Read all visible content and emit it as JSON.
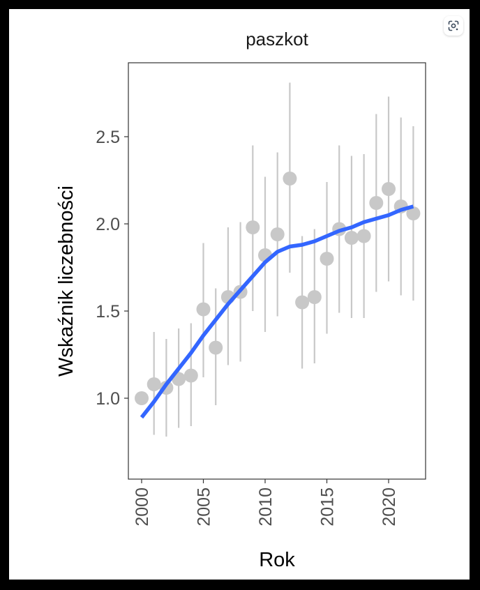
{
  "chart_data": {
    "type": "scatter",
    "title": "paszkot",
    "xlabel": "Rok",
    "ylabel": "Wskaźnik liczebności",
    "xlim": [
      1999,
      2023
    ],
    "ylim": [
      0.45,
      2.85
    ],
    "x_ticks": [
      2000,
      2005,
      2010,
      2015,
      2020
    ],
    "y_ticks": [
      1.0,
      1.5,
      2.0,
      2.5
    ],
    "x_tick_labels": [
      "2000",
      "2005",
      "2010",
      "2015",
      "2020"
    ],
    "y_tick_labels": [
      "1.0",
      "1.5",
      "2.0",
      "2.5"
    ],
    "grid": false,
    "series": [
      {
        "kind": "points_with_error_bars",
        "color": "#c8c8c8",
        "points": [
          {
            "x": 2000,
            "y": 1.0,
            "lo": null,
            "hi": null
          },
          {
            "x": 2001,
            "y": 1.08,
            "lo": 0.79,
            "hi": 1.38
          },
          {
            "x": 2002,
            "y": 1.06,
            "lo": 0.78,
            "hi": 1.34
          },
          {
            "x": 2003,
            "y": 1.11,
            "lo": 0.83,
            "hi": 1.4
          },
          {
            "x": 2004,
            "y": 1.13,
            "lo": 0.84,
            "hi": 1.43
          },
          {
            "x": 2005,
            "y": 1.51,
            "lo": 1.12,
            "hi": 1.89
          },
          {
            "x": 2006,
            "y": 1.29,
            "lo": 0.96,
            "hi": 1.63
          },
          {
            "x": 2007,
            "y": 1.58,
            "lo": 1.19,
            "hi": 1.98
          },
          {
            "x": 2008,
            "y": 1.61,
            "lo": 1.21,
            "hi": 2.01
          },
          {
            "x": 2009,
            "y": 1.98,
            "lo": 1.5,
            "hi": 2.45
          },
          {
            "x": 2010,
            "y": 1.82,
            "lo": 1.38,
            "hi": 2.27
          },
          {
            "x": 2011,
            "y": 1.94,
            "lo": 1.47,
            "hi": 2.41
          },
          {
            "x": 2012,
            "y": 2.26,
            "lo": 1.72,
            "hi": 2.81
          },
          {
            "x": 2013,
            "y": 1.55,
            "lo": 1.17,
            "hi": 1.93
          },
          {
            "x": 2014,
            "y": 1.58,
            "lo": 1.2,
            "hi": 1.97
          },
          {
            "x": 2015,
            "y": 1.8,
            "lo": 1.37,
            "hi": 2.24
          },
          {
            "x": 2016,
            "y": 1.97,
            "lo": 1.49,
            "hi": 2.45
          },
          {
            "x": 2017,
            "y": 1.92,
            "lo": 1.46,
            "hi": 2.39
          },
          {
            "x": 2018,
            "y": 1.93,
            "lo": 1.46,
            "hi": 2.4
          },
          {
            "x": 2019,
            "y": 2.12,
            "lo": 1.61,
            "hi": 2.63
          },
          {
            "x": 2020,
            "y": 2.2,
            "lo": 1.67,
            "hi": 2.73
          },
          {
            "x": 2021,
            "y": 2.1,
            "lo": 1.59,
            "hi": 2.61
          },
          {
            "x": 2022,
            "y": 2.06,
            "lo": 1.56,
            "hi": 2.56
          }
        ]
      },
      {
        "kind": "trend_line",
        "color": "#3366ff",
        "points": [
          {
            "x": 2000,
            "y": 0.89
          },
          {
            "x": 2001,
            "y": 0.98
          },
          {
            "x": 2002,
            "y": 1.08
          },
          {
            "x": 2003,
            "y": 1.17
          },
          {
            "x": 2004,
            "y": 1.26
          },
          {
            "x": 2005,
            "y": 1.36
          },
          {
            "x": 2006,
            "y": 1.45
          },
          {
            "x": 2007,
            "y": 1.54
          },
          {
            "x": 2008,
            "y": 1.62
          },
          {
            "x": 2009,
            "y": 1.7
          },
          {
            "x": 2010,
            "y": 1.78
          },
          {
            "x": 2011,
            "y": 1.84
          },
          {
            "x": 2012,
            "y": 1.87
          },
          {
            "x": 2013,
            "y": 1.88
          },
          {
            "x": 2014,
            "y": 1.9
          },
          {
            "x": 2015,
            "y": 1.93
          },
          {
            "x": 2016,
            "y": 1.96
          },
          {
            "x": 2017,
            "y": 1.98
          },
          {
            "x": 2018,
            "y": 2.01
          },
          {
            "x": 2019,
            "y": 2.03
          },
          {
            "x": 2020,
            "y": 2.05
          },
          {
            "x": 2021,
            "y": 2.08
          },
          {
            "x": 2022,
            "y": 2.1
          }
        ]
      }
    ]
  },
  "ui": {
    "lens_icon": "google-lens-icon"
  }
}
